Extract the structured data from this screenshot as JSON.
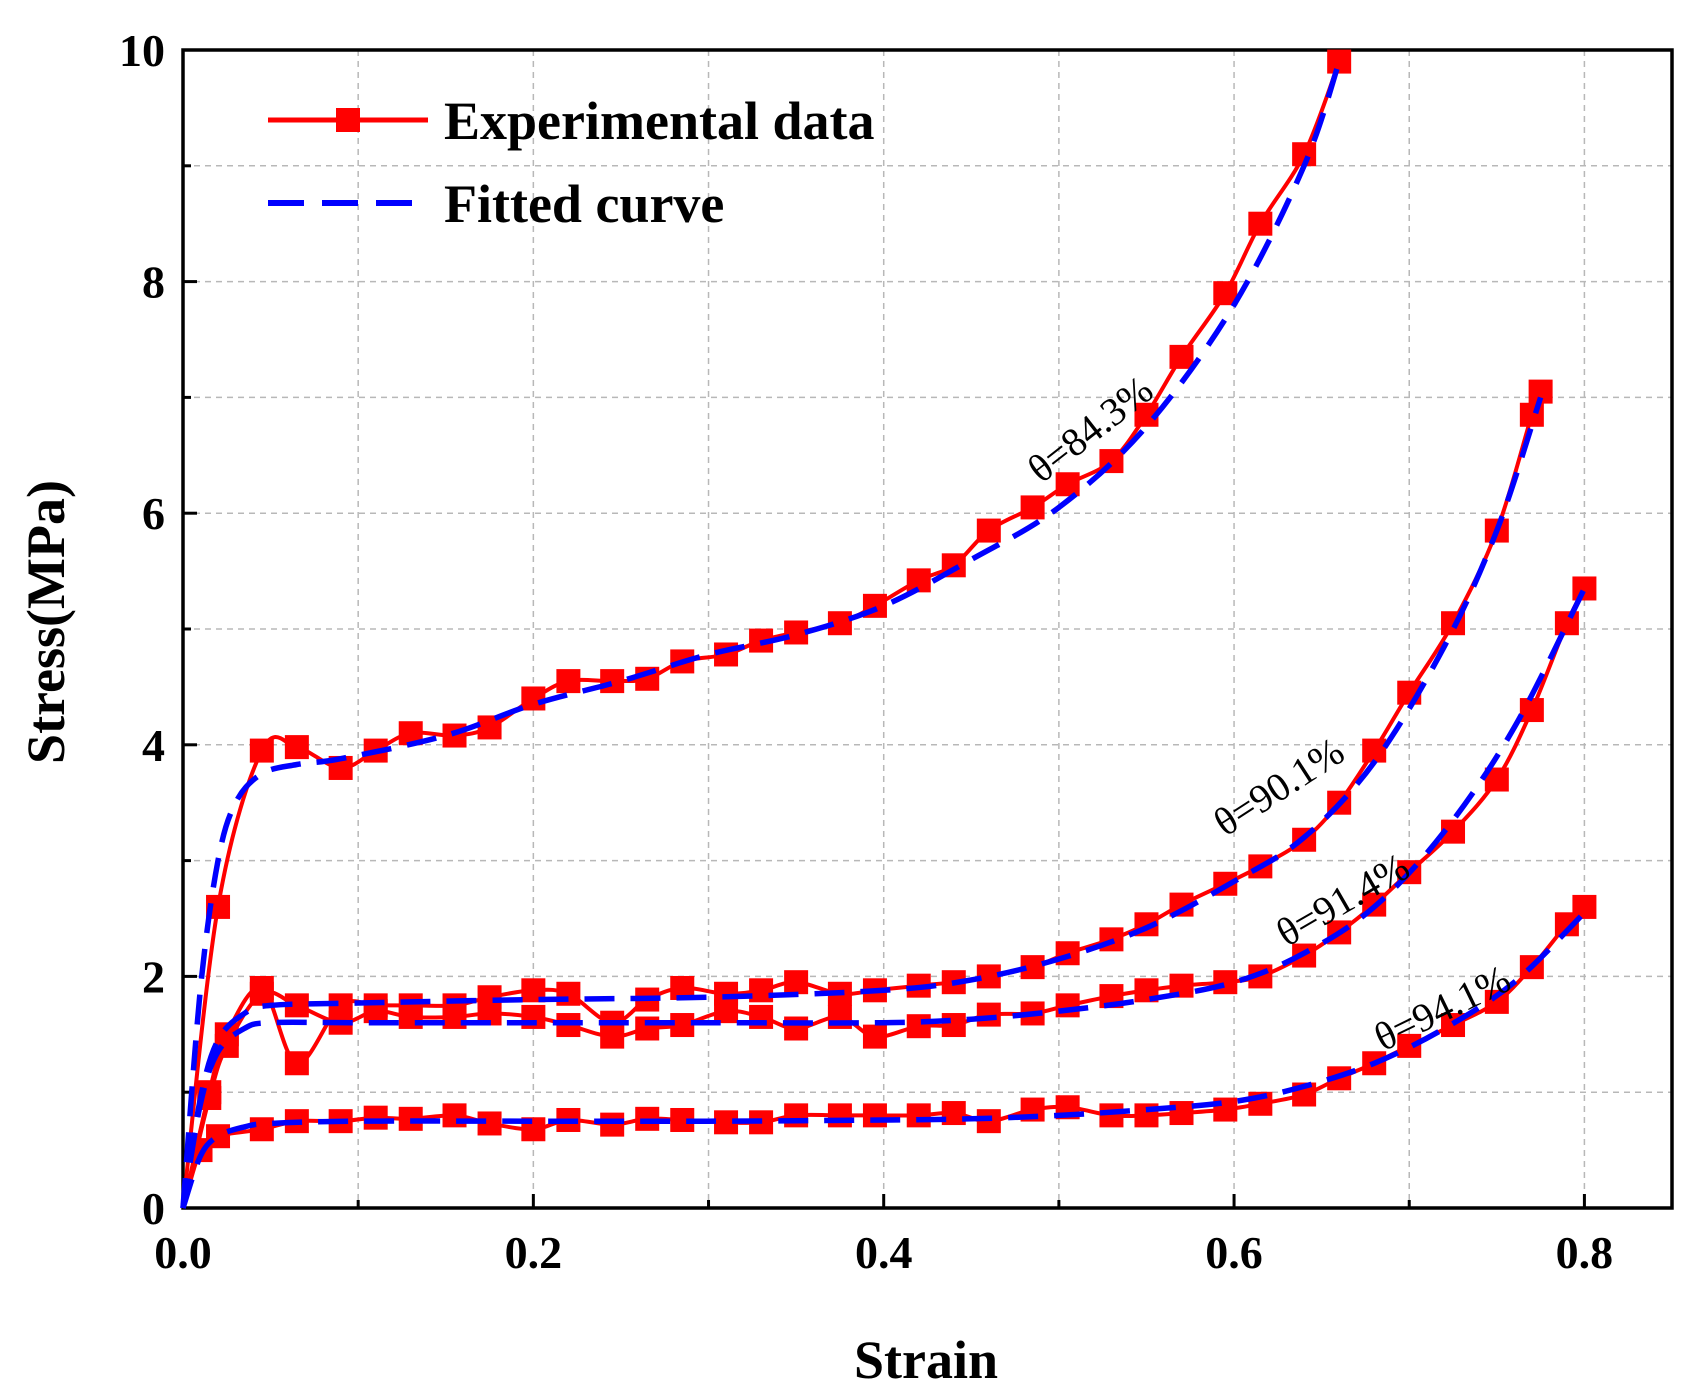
{
  "chart_data": {
    "type": "line",
    "xlabel": "Strain",
    "ylabel": "Stress(MPa)",
    "xlim": [
      0,
      0.85
    ],
    "ylim": [
      0,
      10
    ],
    "x_ticks": [
      "0.0",
      "0.2",
      "0.4",
      "0.6",
      "0.8"
    ],
    "y_ticks": [
      "0",
      "2",
      "4",
      "6",
      "8",
      "10"
    ],
    "grid": true,
    "legend": {
      "placement": "top-left",
      "entries": [
        "Experimental data",
        "Fitted curve"
      ]
    },
    "colors": {
      "experimental": "#ff0000",
      "fitted": "#0000ff"
    },
    "annotations": [
      {
        "text": "θ=84.3%",
        "x": 0.49,
        "y": 6.25,
        "angle": -38
      },
      {
        "text": "θ=90.1%",
        "x": 0.595,
        "y": 3.2,
        "angle": -33
      },
      {
        "text": "θ=91.4%",
        "x": 0.63,
        "y": 2.25,
        "angle": -30
      },
      {
        "text": "θ=94.1%",
        "x": 0.685,
        "y": 1.35,
        "angle": -26
      }
    ],
    "series": [
      {
        "name": "θ=84.3%",
        "experimental": {
          "x": [
            0,
            0.02,
            0.045,
            0.065,
            0.09,
            0.11,
            0.13,
            0.155,
            0.175,
            0.2,
            0.22,
            0.245,
            0.265,
            0.285,
            0.31,
            0.33,
            0.35,
            0.375,
            0.395,
            0.42,
            0.44,
            0.46,
            0.485,
            0.505,
            0.53,
            0.55,
            0.57,
            0.595,
            0.615,
            0.64,
            0.66
          ],
          "y": [
            0,
            2.6,
            3.95,
            3.98,
            3.8,
            3.95,
            4.1,
            4.08,
            4.15,
            4.4,
            4.55,
            4.55,
            4.57,
            4.72,
            4.78,
            4.9,
            4.97,
            5.05,
            5.2,
            5.42,
            5.55,
            5.85,
            6.05,
            6.25,
            6.45,
            6.85,
            7.35,
            7.9,
            8.5,
            9.1,
            9.9
          ]
        },
        "fitted": {
          "x": [
            0,
            0.01,
            0.02,
            0.03,
            0.045,
            0.065,
            0.09,
            0.15,
            0.2,
            0.25,
            0.3,
            0.35,
            0.4,
            0.45,
            0.5,
            0.55,
            0.6,
            0.64,
            0.66
          ],
          "y": [
            0,
            1.9,
            3.0,
            3.5,
            3.75,
            3.83,
            3.88,
            4.08,
            4.35,
            4.55,
            4.78,
            4.95,
            5.2,
            5.6,
            6.05,
            6.75,
            7.8,
            9.0,
            9.9
          ]
        }
      },
      {
        "name": "θ=90.1%",
        "experimental": {
          "x": [
            0,
            0.015,
            0.025,
            0.045,
            0.065,
            0.09,
            0.11,
            0.13,
            0.155,
            0.175,
            0.2,
            0.22,
            0.245,
            0.265,
            0.285,
            0.31,
            0.33,
            0.35,
            0.375,
            0.395,
            0.42,
            0.44,
            0.46,
            0.485,
            0.505,
            0.53,
            0.55,
            0.57,
            0.595,
            0.615,
            0.64,
            0.66,
            0.68,
            0.7,
            0.725,
            0.75,
            0.77,
            0.775
          ],
          "y": [
            0,
            1.0,
            1.5,
            1.9,
            1.25,
            1.75,
            1.75,
            1.75,
            1.75,
            1.82,
            1.88,
            1.85,
            1.6,
            1.8,
            1.9,
            1.85,
            1.88,
            1.95,
            1.85,
            1.88,
            1.92,
            1.95,
            2.0,
            2.08,
            2.2,
            2.32,
            2.45,
            2.62,
            2.8,
            2.95,
            3.18,
            3.5,
            3.95,
            4.45,
            5.05,
            5.85,
            6.85,
            7.05
          ]
        },
        "fitted": {
          "x": [
            0,
            0.01,
            0.02,
            0.035,
            0.05,
            0.1,
            0.2,
            0.3,
            0.4,
            0.45,
            0.5,
            0.55,
            0.6,
            0.64,
            0.68,
            0.72,
            0.75,
            0.775
          ],
          "y": [
            0,
            0.95,
            1.45,
            1.68,
            1.75,
            1.77,
            1.8,
            1.82,
            1.88,
            1.97,
            2.15,
            2.42,
            2.82,
            3.2,
            3.85,
            4.85,
            5.85,
            7.0
          ]
        }
      },
      {
        "name": "θ=91.4%",
        "experimental": {
          "x": [
            0,
            0.015,
            0.025,
            0.045,
            0.065,
            0.09,
            0.11,
            0.13,
            0.155,
            0.175,
            0.2,
            0.22,
            0.245,
            0.265,
            0.285,
            0.31,
            0.33,
            0.35,
            0.375,
            0.395,
            0.42,
            0.44,
            0.46,
            0.485,
            0.505,
            0.53,
            0.55,
            0.57,
            0.595,
            0.615,
            0.64,
            0.66,
            0.68,
            0.7,
            0.725,
            0.75,
            0.77,
            0.79,
            0.8
          ],
          "y": [
            0,
            0.95,
            1.4,
            1.85,
            1.75,
            1.6,
            1.7,
            1.65,
            1.65,
            1.68,
            1.65,
            1.58,
            1.48,
            1.55,
            1.58,
            1.7,
            1.65,
            1.55,
            1.65,
            1.48,
            1.57,
            1.58,
            1.67,
            1.68,
            1.75,
            1.83,
            1.88,
            1.92,
            1.95,
            2.0,
            2.18,
            2.38,
            2.62,
            2.9,
            3.25,
            3.7,
            4.3,
            5.05,
            5.35
          ]
        },
        "fitted": {
          "x": [
            0,
            0.01,
            0.02,
            0.035,
            0.05,
            0.1,
            0.2,
            0.3,
            0.4,
            0.45,
            0.5,
            0.55,
            0.6,
            0.64,
            0.68,
            0.72,
            0.76,
            0.8
          ],
          "y": [
            0,
            0.9,
            1.35,
            1.55,
            1.6,
            1.6,
            1.6,
            1.6,
            1.6,
            1.63,
            1.7,
            1.8,
            1.95,
            2.2,
            2.6,
            3.25,
            4.15,
            5.35
          ]
        }
      },
      {
        "name": "θ=94.1%",
        "experimental": {
          "x": [
            0,
            0.01,
            0.02,
            0.045,
            0.065,
            0.09,
            0.11,
            0.13,
            0.155,
            0.175,
            0.2,
            0.22,
            0.245,
            0.265,
            0.285,
            0.31,
            0.33,
            0.35,
            0.375,
            0.395,
            0.42,
            0.44,
            0.46,
            0.485,
            0.505,
            0.53,
            0.55,
            0.57,
            0.595,
            0.615,
            0.64,
            0.66,
            0.68,
            0.7,
            0.725,
            0.75,
            0.77,
            0.79,
            0.8
          ],
          "y": [
            0,
            0.5,
            0.62,
            0.68,
            0.75,
            0.75,
            0.78,
            0.77,
            0.8,
            0.73,
            0.68,
            0.76,
            0.72,
            0.77,
            0.76,
            0.74,
            0.74,
            0.8,
            0.8,
            0.8,
            0.8,
            0.82,
            0.75,
            0.85,
            0.87,
            0.8,
            0.8,
            0.82,
            0.85,
            0.9,
            0.98,
            1.12,
            1.25,
            1.4,
            1.58,
            1.78,
            2.08,
            2.45,
            2.6
          ]
        },
        "fitted": {
          "x": [
            0,
            0.01,
            0.02,
            0.035,
            0.05,
            0.1,
            0.2,
            0.3,
            0.4,
            0.45,
            0.5,
            0.55,
            0.6,
            0.64,
            0.68,
            0.72,
            0.76,
            0.8
          ],
          "y": [
            0,
            0.45,
            0.62,
            0.7,
            0.73,
            0.75,
            0.75,
            0.75,
            0.76,
            0.77,
            0.8,
            0.85,
            0.92,
            1.05,
            1.25,
            1.55,
            1.95,
            2.55
          ]
        }
      }
    ]
  }
}
